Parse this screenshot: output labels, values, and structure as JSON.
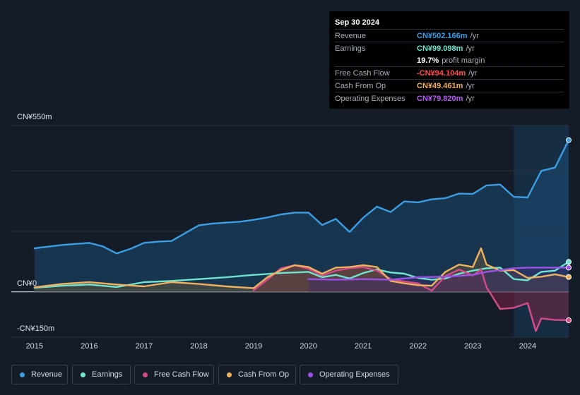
{
  "tooltip": {
    "date": "Sep 30 2024",
    "rows": [
      {
        "label": "Revenue",
        "value": "CN¥502.166m",
        "unit": "/yr",
        "color": "#3b9ee4"
      },
      {
        "label": "Earnings",
        "value": "CN¥99.098m",
        "unit": "/yr",
        "color": "#6ee6cf"
      },
      {
        "label": "",
        "value": "19.7%",
        "unit": "profit margin",
        "color": "#ffffff"
      },
      {
        "label": "Free Cash Flow",
        "value": "-CN¥94.104m",
        "unit": "/yr",
        "color": "#ff4d4f"
      },
      {
        "label": "Cash From Op",
        "value": "CN¥49.461m",
        "unit": "/yr",
        "color": "#f0b15e"
      },
      {
        "label": "Operating Expenses",
        "value": "CN¥79.820m",
        "unit": "/yr",
        "color": "#b45cf0"
      }
    ]
  },
  "legend": [
    {
      "label": "Revenue",
      "color": "#3b9ee4"
    },
    {
      "label": "Earnings",
      "color": "#6ee6cf"
    },
    {
      "label": "Free Cash Flow",
      "color": "#d64b8a"
    },
    {
      "label": "Cash From Op",
      "color": "#f0b15e"
    },
    {
      "label": "Operating Expenses",
      "color": "#9b52e8"
    }
  ],
  "chart_data": {
    "type": "line",
    "y_tick_labels": [
      "CN¥550m",
      "CN¥0",
      "-CN¥150m"
    ],
    "x_tick_labels": [
      "2015",
      "2016",
      "2017",
      "2018",
      "2019",
      "2020",
      "2021",
      "2022",
      "2023",
      "2024"
    ],
    "ylim": [
      -150,
      550
    ],
    "xlim": [
      2014.99,
      2024.75
    ],
    "forecast_shade_start": 2023.75,
    "grid": true,
    "series": [
      {
        "name": "Revenue",
        "color": "#3b9ee4",
        "fill": true,
        "x": [
          2015.0,
          2015.5,
          2016.0,
          2016.25,
          2016.5,
          2016.75,
          2017.0,
          2017.25,
          2017.5,
          2017.75,
          2018.0,
          2018.25,
          2018.5,
          2018.75,
          2019.0,
          2019.25,
          2019.5,
          2019.75,
          2020.0,
          2020.25,
          2020.5,
          2020.75,
          2021.0,
          2021.25,
          2021.5,
          2021.75,
          2022.0,
          2022.25,
          2022.5,
          2022.75,
          2023.0,
          2023.25,
          2023.5,
          2023.75,
          2024.0,
          2024.25,
          2024.5,
          2024.75
        ],
        "y": [
          144,
          155,
          162,
          150,
          127,
          142,
          162,
          166,
          168,
          194,
          220,
          226,
          229,
          232,
          238,
          246,
          256,
          262,
          262,
          221,
          241,
          198,
          245,
          282,
          264,
          299,
          296,
          306,
          310,
          325,
          324,
          352,
          355,
          314,
          312,
          400,
          411,
          502
        ]
      },
      {
        "name": "Earnings",
        "color": "#6ee6cf",
        "fill": false,
        "x": [
          2015.0,
          2015.5,
          2016.0,
          2016.5,
          2017.0,
          2017.5,
          2018.0,
          2018.5,
          2019.0,
          2019.5,
          2020.0,
          2020.25,
          2020.5,
          2020.75,
          2021.0,
          2021.25,
          2021.5,
          2021.75,
          2022.0,
          2022.25,
          2022.5,
          2022.75,
          2023.0,
          2023.25,
          2023.5,
          2023.75,
          2024.0,
          2024.25,
          2024.5,
          2024.75
        ],
        "y": [
          13,
          20,
          24,
          16,
          32,
          36,
          42,
          48,
          56,
          62,
          66,
          48,
          56,
          44,
          62,
          74,
          64,
          60,
          46,
          40,
          44,
          60,
          70,
          78,
          80,
          42,
          38,
          66,
          70,
          99
        ]
      },
      {
        "name": "Free Cash Flow",
        "color": "#d64b8a",
        "fill": true,
        "fill_color": "#8e2446",
        "x": [
          2019.0,
          2019.25,
          2019.5,
          2019.75,
          2020.0,
          2020.25,
          2020.5,
          2020.75,
          2021.0,
          2021.25,
          2021.5,
          2021.75,
          2022.0,
          2022.25,
          2022.5,
          2022.75,
          2023.0,
          2023.15,
          2023.25,
          2023.5,
          2023.75,
          2024.0,
          2024.15,
          2024.25,
          2024.5,
          2024.75
        ],
        "y": [
          5,
          40,
          78,
          88,
          76,
          54,
          70,
          78,
          82,
          70,
          42,
          34,
          28,
          4,
          52,
          74,
          54,
          74,
          15,
          -57,
          -53,
          -37,
          -130,
          -88,
          -93,
          -94
        ]
      },
      {
        "name": "Cash From Op",
        "color": "#f0b15e",
        "fill": true,
        "fill_color": "#6b5a36",
        "x": [
          2015.0,
          2015.5,
          2016.0,
          2016.5,
          2017.0,
          2017.5,
          2018.0,
          2018.5,
          2019.0,
          2019.25,
          2019.5,
          2019.75,
          2020.0,
          2020.25,
          2020.5,
          2020.75,
          2021.0,
          2021.25,
          2021.5,
          2021.75,
          2022.0,
          2022.25,
          2022.5,
          2022.75,
          2023.0,
          2023.15,
          2023.25,
          2023.5,
          2023.75,
          2024.0,
          2024.25,
          2024.5,
          2024.75
        ],
        "y": [
          15,
          26,
          32,
          24,
          18,
          32,
          26,
          18,
          12,
          48,
          72,
          88,
          82,
          60,
          80,
          82,
          88,
          82,
          36,
          28,
          22,
          20,
          66,
          90,
          82,
          144,
          90,
          70,
          72,
          46,
          50,
          58,
          49
        ]
      },
      {
        "name": "Operating Expenses",
        "color": "#9b52e8",
        "fill": true,
        "fill_color": "#3a2a6a",
        "x": [
          2020.0,
          2020.5,
          2021.0,
          2021.5,
          2022.0,
          2022.5,
          2023.0,
          2023.25,
          2023.5,
          2023.75,
          2024.0,
          2024.5,
          2024.75
        ],
        "y": [
          42,
          40,
          42,
          40,
          48,
          50,
          56,
          66,
          72,
          78,
          80,
          80,
          80
        ]
      }
    ]
  }
}
